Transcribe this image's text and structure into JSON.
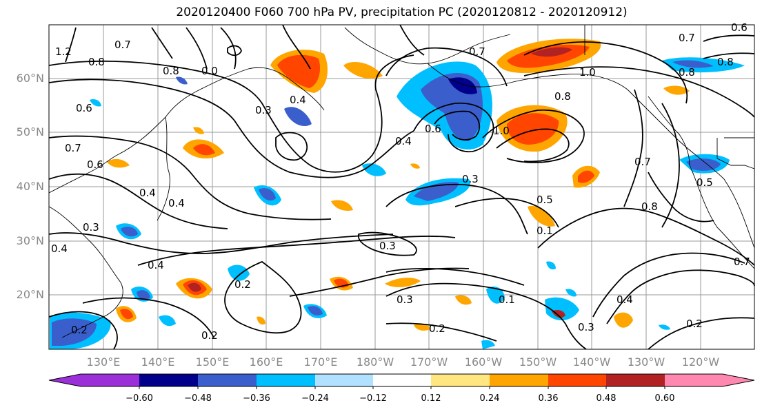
{
  "title": "2020120400 F060 700 hPa PV, precipitation PC (2020120812 - 2020120912)",
  "lat_labels": [
    "60°N",
    "50°N",
    "40°N",
    "30°N",
    "20°N"
  ],
  "lon_labels": [
    "130°E",
    "140°E",
    "150°E",
    "160°E",
    "170°E",
    "180°W",
    "170°W",
    "160°W",
    "150°W",
    "140°W",
    "130°W",
    "120°W"
  ],
  "colorbar": {
    "ticks": [
      "−0.60",
      "−0.48",
      "−0.36",
      "−0.24",
      "−0.12",
      "0.12",
      "0.24",
      "0.36",
      "0.48",
      "0.60"
    ],
    "colors": [
      "#9b30d9",
      "#00008b",
      "#3a5fcd",
      "#00bfff",
      "#b0e2ff",
      "#ffffff",
      "#ffe680",
      "#ffa500",
      "#ff4500",
      "#b22222",
      "#ff88b0"
    ]
  },
  "contour_labels": [
    "1.2",
    "0.7",
    "0.8",
    "0.8",
    "0.0",
    "0.6",
    "0.7",
    "0.6",
    "0.4",
    "0.3",
    "0.4",
    "0.4",
    "0.3",
    "0.4",
    "0.4",
    "0.2",
    "0.3",
    "0.2",
    "0.3",
    "0.2",
    "0.2",
    "0.3",
    "0.4",
    "0.6",
    "0.8",
    "1.0",
    "0.7",
    "0.5",
    "0.1",
    "0.3",
    "1.0",
    "0.8",
    "0.8",
    "0.7",
    "0.5",
    "0.8",
    "0.7",
    "0.6",
    "0.2",
    "0.4",
    "0.7",
    "0.1"
  ]
}
